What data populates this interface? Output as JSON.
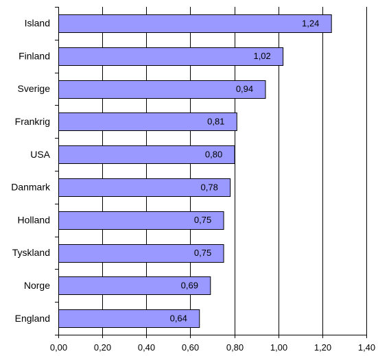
{
  "chart_data": {
    "type": "bar",
    "orientation": "horizontal",
    "categories": [
      "Island",
      "Finland",
      "Sverige",
      "Frankrig",
      "USA",
      "Danmark",
      "Holland",
      "Tyskland",
      "Norge",
      "England"
    ],
    "values": [
      1.24,
      1.02,
      0.94,
      0.81,
      0.8,
      0.78,
      0.75,
      0.75,
      0.69,
      0.64
    ],
    "data_labels": [
      "1,24",
      "1,02",
      "0,94",
      "0,81",
      "0,80",
      "0,78",
      "0,75",
      "0,75",
      "0,69",
      "0,64"
    ],
    "x_ticks": [
      0,
      0.2,
      0.4,
      0.6,
      0.8,
      1.0,
      1.2,
      1.4
    ],
    "x_tick_labels": [
      "0,00",
      "0,20",
      "0,40",
      "0,60",
      "0,80",
      "1,00",
      "1,20",
      "1,40"
    ],
    "xlim": [
      0,
      1.4
    ],
    "grid": "vertical",
    "legend": "none",
    "title": "",
    "xlabel": "",
    "ylabel": "",
    "colors": {
      "bar_fill": "#9999ff",
      "bar_stroke": "#000000",
      "grid": "#000000",
      "axis": "#000000"
    }
  }
}
